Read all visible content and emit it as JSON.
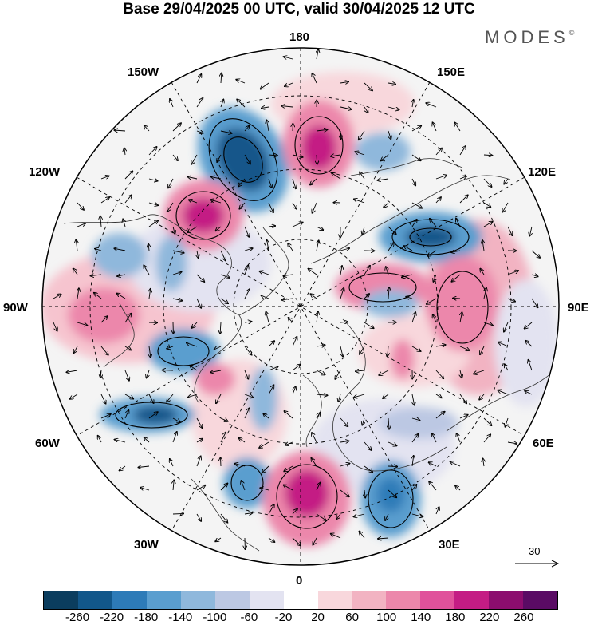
{
  "title": "Base 29/04/2025 00 UTC, valid 30/04/2025 12 UTC",
  "brand": {
    "name": "MODES",
    "mark": "©"
  },
  "longitude_labels": {
    "north": "180",
    "nne": "150E",
    "ene": "120E",
    "east": "90E",
    "ese": "60E",
    "sse": "30E",
    "south": "0",
    "ssw": "30W",
    "wsw": "60W",
    "west": "90W",
    "wnw": "120W",
    "nnw": "150W"
  },
  "reference_vector": {
    "value": "30"
  },
  "colorbar": {
    "colors": [
      "#0b3d5e",
      "#12578a",
      "#2d7bb8",
      "#5a9ecf",
      "#8fb8dc",
      "#bcc8e3",
      "#e3e3f1",
      "#ffffff",
      "#f8d7dc",
      "#f2b3c2",
      "#ec87ab",
      "#e0519b",
      "#c41c84",
      "#8c0d6e",
      "#5a0b64"
    ],
    "tick_labels": [
      "-260",
      "-220",
      "-180",
      "-140",
      "-100",
      "-60",
      "-20",
      "20",
      "60",
      "100",
      "140",
      "180",
      "220",
      "260"
    ]
  },
  "map": {
    "projection": "north-polar-stereographic",
    "field": "anomaly",
    "vectors": "wind arrows"
  }
}
